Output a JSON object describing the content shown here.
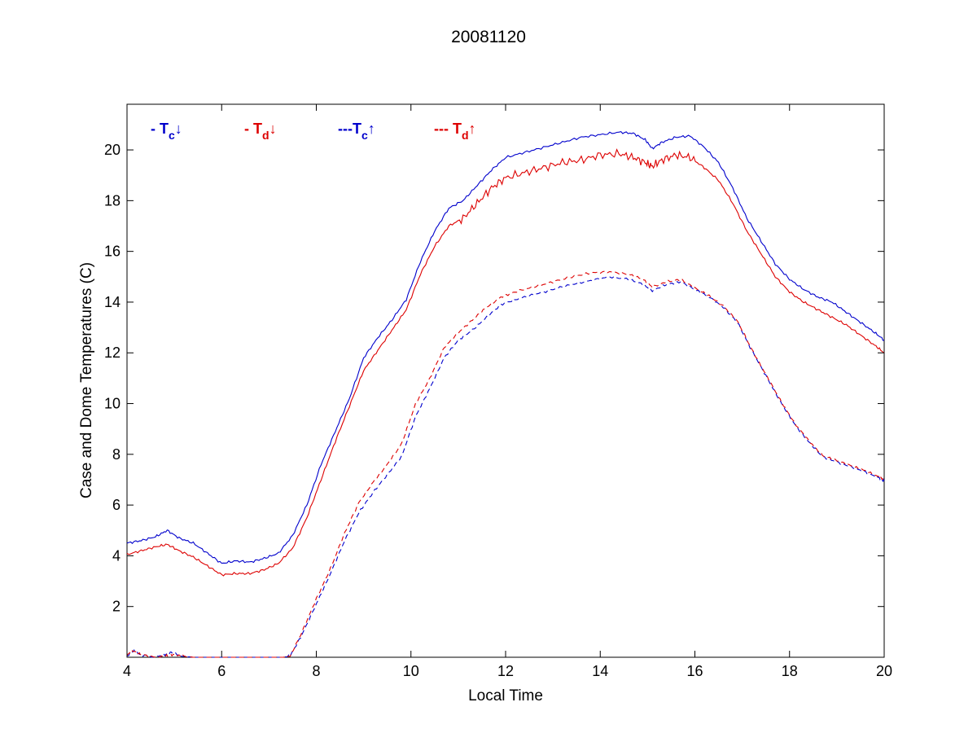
{
  "chart_data": {
    "type": "line",
    "title": "20081120",
    "xlabel": "Local Time",
    "ylabel": "Case and Dome Temperatures (C)",
    "xlim": [
      4,
      20
    ],
    "ylim": [
      0,
      21.8
    ],
    "xticks": [
      4,
      6,
      8,
      10,
      12,
      14,
      16,
      18,
      20
    ],
    "yticks": [
      2,
      4,
      6,
      8,
      10,
      12,
      14,
      16,
      18,
      20
    ],
    "grid": false,
    "legend_position": "top-left",
    "series": [
      {
        "key": "tc_down",
        "legend_prefix": "- T",
        "legend_sub": "c",
        "legend_arrow": "↓",
        "color": "#0000cc",
        "dash": "solid",
        "x": [
          4.0,
          4.3,
          4.6,
          4.85,
          5.1,
          5.4,
          5.7,
          6.0,
          6.3,
          6.6,
          6.9,
          7.2,
          7.5,
          7.8,
          8.1,
          8.4,
          8.7,
          9.0,
          9.3,
          9.6,
          9.9,
          10.2,
          10.5,
          10.8,
          11.1,
          11.4,
          11.7,
          12.0,
          12.4,
          12.8,
          13.2,
          13.6,
          14.0,
          14.4,
          14.7,
          14.95,
          15.1,
          15.3,
          15.6,
          15.9,
          16.2,
          16.5,
          16.8,
          17.1,
          17.4,
          17.7,
          18.0,
          18.3,
          18.6,
          18.9,
          19.2,
          19.5,
          19.8,
          20.0
        ],
        "y": [
          4.5,
          4.6,
          4.75,
          5.0,
          4.7,
          4.5,
          4.1,
          3.7,
          3.8,
          3.75,
          3.9,
          4.1,
          4.8,
          6.0,
          7.6,
          8.9,
          10.2,
          11.8,
          12.6,
          13.3,
          14.1,
          15.6,
          16.8,
          17.7,
          18.0,
          18.6,
          19.2,
          19.7,
          19.9,
          20.1,
          20.3,
          20.5,
          20.6,
          20.7,
          20.65,
          20.4,
          20.05,
          20.3,
          20.5,
          20.55,
          20.1,
          19.5,
          18.5,
          17.3,
          16.4,
          15.5,
          14.9,
          14.5,
          14.2,
          14.0,
          13.6,
          13.2,
          12.8,
          12.5
        ]
      },
      {
        "key": "td_down",
        "legend_prefix": "- T",
        "legend_sub": "d",
        "legend_arrow": "↓",
        "color": "#dd0000",
        "dash": "solid",
        "x": [
          4.0,
          4.3,
          4.6,
          4.85,
          5.1,
          5.4,
          5.7,
          6.0,
          6.3,
          6.6,
          6.9,
          7.2,
          7.5,
          7.8,
          8.1,
          8.4,
          8.7,
          9.0,
          9.3,
          9.6,
          9.9,
          10.2,
          10.5,
          10.8,
          11.1,
          11.4,
          11.7,
          12.0,
          12.4,
          12.8,
          13.2,
          13.6,
          14.0,
          14.4,
          14.7,
          14.95,
          15.1,
          15.3,
          15.6,
          15.9,
          16.2,
          16.5,
          16.8,
          17.1,
          17.4,
          17.7,
          18.0,
          18.3,
          18.6,
          18.9,
          19.2,
          19.5,
          19.8,
          20.0
        ],
        "y": [
          4.05,
          4.2,
          4.35,
          4.45,
          4.2,
          3.95,
          3.6,
          3.25,
          3.3,
          3.3,
          3.45,
          3.7,
          4.3,
          5.5,
          7.0,
          8.5,
          9.9,
          11.3,
          12.1,
          12.9,
          13.7,
          15.1,
          16.2,
          17.0,
          17.3,
          17.9,
          18.5,
          18.9,
          19.1,
          19.3,
          19.5,
          19.6,
          19.8,
          19.85,
          19.7,
          19.5,
          19.35,
          19.6,
          19.8,
          19.7,
          19.3,
          18.8,
          17.9,
          16.8,
          15.9,
          15.0,
          14.4,
          14.0,
          13.7,
          13.4,
          13.1,
          12.7,
          12.3,
          12.0
        ]
      },
      {
        "key": "tc_up",
        "legend_prefix": "---T",
        "legend_sub": "c",
        "legend_arrow": "↑",
        "color": "#0000cc",
        "dash": "dashed",
        "x": [
          4.0,
          4.15,
          4.3,
          4.6,
          4.8,
          4.95,
          5.15,
          5.4,
          6.0,
          6.5,
          7.0,
          7.3,
          7.45,
          7.7,
          8.0,
          8.3,
          8.6,
          8.9,
          9.2,
          9.5,
          9.8,
          10.1,
          10.4,
          10.7,
          11.0,
          11.3,
          11.6,
          11.9,
          12.2,
          12.6,
          13.0,
          13.4,
          13.8,
          14.2,
          14.6,
          14.9,
          15.1,
          15.4,
          15.7,
          16.0,
          16.3,
          16.6,
          16.9,
          17.2,
          17.5,
          17.8,
          18.1,
          18.4,
          18.7,
          19.0,
          19.3,
          19.6,
          19.9,
          20.0
        ],
        "y": [
          0.05,
          0.25,
          0.1,
          0.0,
          0.1,
          0.2,
          0.05,
          0.0,
          0.0,
          0.0,
          0.0,
          0.0,
          0.05,
          0.9,
          2.1,
          3.3,
          4.6,
          5.7,
          6.5,
          7.2,
          7.9,
          9.5,
          10.6,
          11.8,
          12.5,
          12.9,
          13.4,
          13.9,
          14.1,
          14.3,
          14.5,
          14.7,
          14.85,
          15.0,
          14.9,
          14.7,
          14.45,
          14.7,
          14.8,
          14.5,
          14.2,
          13.8,
          13.2,
          12.1,
          11.1,
          10.1,
          9.2,
          8.5,
          7.9,
          7.7,
          7.5,
          7.3,
          7.05,
          6.95
        ]
      },
      {
        "key": "td_up",
        "legend_prefix": "--- T",
        "legend_sub": "d",
        "legend_arrow": "↑",
        "color": "#dd0000",
        "dash": "dashed",
        "x": [
          4.0,
          4.15,
          4.3,
          4.6,
          4.8,
          4.95,
          5.15,
          5.4,
          6.0,
          6.5,
          7.0,
          7.3,
          7.45,
          7.7,
          8.0,
          8.3,
          8.6,
          8.9,
          9.2,
          9.5,
          9.8,
          10.1,
          10.4,
          10.7,
          11.0,
          11.3,
          11.6,
          11.9,
          12.2,
          12.6,
          13.0,
          13.4,
          13.8,
          14.2,
          14.6,
          14.9,
          15.1,
          15.4,
          15.7,
          16.0,
          16.3,
          16.6,
          16.9,
          17.2,
          17.5,
          17.8,
          18.1,
          18.4,
          18.7,
          19.0,
          19.3,
          19.6,
          19.9,
          20.0
        ],
        "y": [
          0.1,
          0.25,
          0.1,
          0.0,
          0.05,
          0.1,
          0.05,
          0.0,
          0.0,
          0.0,
          0.0,
          0.0,
          0.05,
          1.0,
          2.3,
          3.5,
          4.9,
          6.1,
          6.9,
          7.6,
          8.4,
          10.0,
          11.0,
          12.2,
          12.8,
          13.3,
          13.8,
          14.2,
          14.4,
          14.6,
          14.8,
          15.0,
          15.15,
          15.2,
          15.1,
          14.9,
          14.6,
          14.8,
          14.9,
          14.55,
          14.25,
          13.85,
          13.25,
          12.15,
          11.15,
          10.15,
          9.25,
          8.55,
          7.95,
          7.75,
          7.55,
          7.35,
          7.1,
          7.0
        ]
      }
    ]
  }
}
